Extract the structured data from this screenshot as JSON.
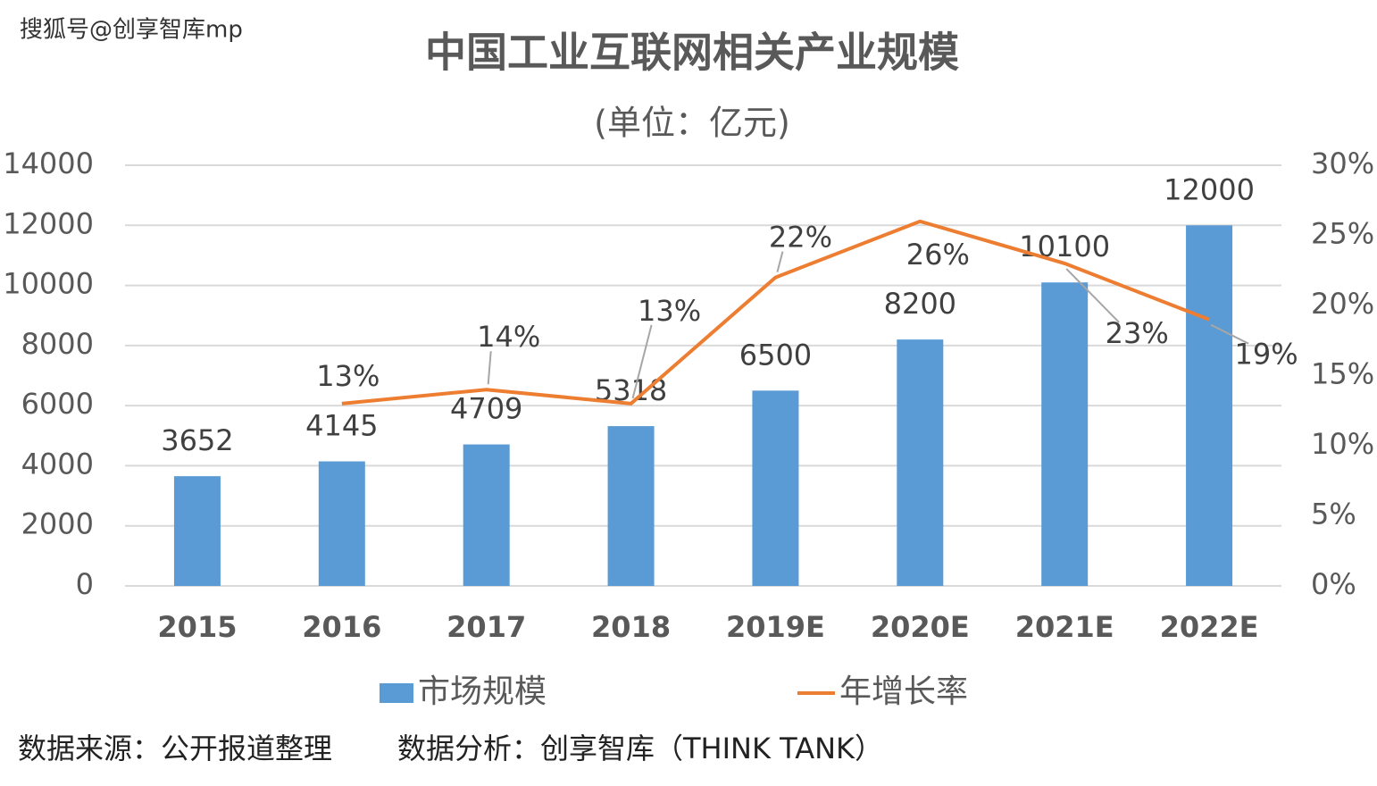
{
  "watermark": "搜狐号@创享智库mp",
  "footer": {
    "source": "数据来源：公开报道整理",
    "analysis": "数据分析：创享智库（THINK  TANK）"
  },
  "chart_data": {
    "type": "bar-line",
    "title": "中国工业互联网相关产业规模",
    "subtitle": "(单位：亿元)",
    "categories": [
      "2015",
      "2016",
      "2017",
      "2018",
      "2019E",
      "2020E",
      "2021E",
      "2022E"
    ],
    "series": [
      {
        "name": "市场规模",
        "type": "bar",
        "color": "#5b9bd5",
        "values": [
          3652,
          4145,
          4709,
          5318,
          6500,
          8200,
          10100,
          12000
        ]
      },
      {
        "name": "年增长率",
        "type": "line",
        "axis": "y2",
        "color": "#ed7d31",
        "values": [
          null,
          13,
          14,
          13,
          22,
          26,
          23,
          19
        ],
        "value_labels": [
          null,
          "13%",
          "14%",
          "13%",
          "22%",
          "26%",
          "23%",
          "19%"
        ]
      }
    ],
    "ylim": [
      0,
      14000
    ],
    "yticks": [
      0,
      2000,
      4000,
      6000,
      8000,
      10000,
      12000,
      14000
    ],
    "y2lim": [
      0,
      30
    ],
    "y2ticks": [
      {
        "value": 0,
        "label": "0%"
      },
      {
        "value": 5,
        "label": "5%"
      },
      {
        "value": 10,
        "label": "10%"
      },
      {
        "value": 15,
        "label": "15%"
      },
      {
        "value": 20,
        "label": "20%"
      },
      {
        "value": 25,
        "label": "25%"
      },
      {
        "value": 30,
        "label": "30%"
      }
    ],
    "grid": true,
    "legend": "bottom"
  }
}
